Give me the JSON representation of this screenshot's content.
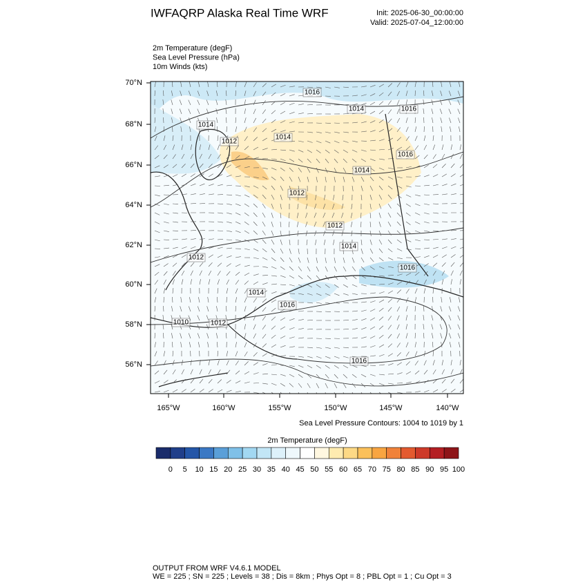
{
  "header": {
    "title": "IWFAQRP Alaska Real Time WRF",
    "init": "Init: 2025-06-30_00:00:00",
    "valid": "Valid: 2025-07-04_12:00:00"
  },
  "fields": [
    "2m Temperature   (degF)",
    "Sea Level Pressure   (hPa)",
    "10m Winds   (kts)"
  ],
  "map": {
    "lat_labels": [
      "70°N",
      "68°N",
      "66°N",
      "64°N",
      "62°N",
      "60°N",
      "58°N",
      "56°N"
    ],
    "lon_labels": [
      "165°W",
      "160°W",
      "155°W",
      "150°W",
      "145°W",
      "140°W"
    ],
    "contour_labels": [
      "1016",
      "1014",
      "1016",
      "1014",
      "1012",
      "1014",
      "1016",
      "1014",
      "1012",
      "1012",
      "1014",
      "1012",
      "1016",
      "1014",
      "1016",
      "1010",
      "1012",
      "1016"
    ],
    "contour_note": "Sea Level Pressure Contours: 1004 to 1019 by 1"
  },
  "colorbar": {
    "title": "2m Temperature  (degF)",
    "colors": [
      "#1a2c6b",
      "#203f8a",
      "#2456a8",
      "#3b78c4",
      "#5a9fd8",
      "#7fc0e8",
      "#a2d8f2",
      "#c2e6f6",
      "#ddf1fa",
      "#eef8fc",
      "#ffffff",
      "#fff7e0",
      "#ffebb0",
      "#fdd985",
      "#fbc05a",
      "#f8a541",
      "#f0823a",
      "#e35a2f",
      "#cd3a29",
      "#b41f23",
      "#8e1519"
    ],
    "labels": [
      0,
      5,
      10,
      15,
      20,
      25,
      30,
      35,
      40,
      45,
      50,
      55,
      60,
      65,
      70,
      75,
      80,
      85,
      90,
      95,
      100
    ]
  },
  "footer": [
    "OUTPUT FROM WRF V4.6.1 MODEL",
    "WE = 225 ; SN = 225 ; Levels = 38 ; Dis = 8km ; Phys Opt = 8 ; PBL Opt = 1 ; Cu Opt = 3"
  ]
}
